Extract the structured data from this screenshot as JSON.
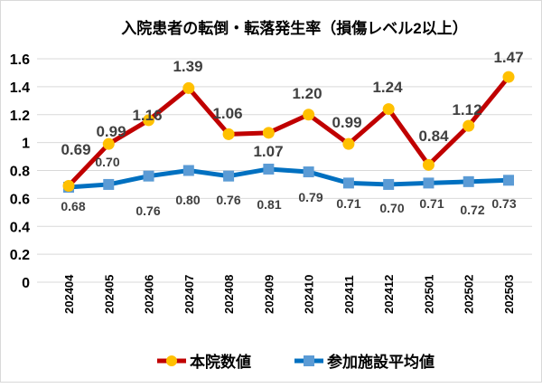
{
  "chart_data": {
    "type": "line",
    "title": "入院患者の転倒・転落発生率（損傷レベル2以上）",
    "xlabel": "",
    "ylabel": "",
    "categories": [
      "202404",
      "202405",
      "202406",
      "202407",
      "202408",
      "202409",
      "202410",
      "202411",
      "202412",
      "202501",
      "202502",
      "202503"
    ],
    "ylim": [
      0,
      1.6
    ],
    "yticks": [
      "0",
      "0.2",
      "0.4",
      "0.6",
      "0.8",
      "1",
      "1.2",
      "1.4",
      "1.6"
    ],
    "grid": true,
    "legend_placement": "bottom",
    "series": [
      {
        "name": "本院数値",
        "values": [
          0.69,
          0.99,
          1.16,
          1.39,
          1.06,
          1.07,
          1.2,
          0.99,
          1.24,
          0.84,
          1.12,
          1.47
        ],
        "labels": [
          "0.69",
          "0.99",
          "1.16",
          "1.39",
          "1.06",
          "1.07",
          "1.20",
          "0.99",
          "1.24",
          "0.84",
          "1.12",
          "1.47"
        ],
        "line_color": "#c00000",
        "marker": "circle",
        "marker_color": "#ffc000"
      },
      {
        "name": "参加施設平均値",
        "values": [
          0.68,
          0.7,
          0.76,
          0.8,
          0.76,
          0.81,
          0.79,
          0.71,
          0.7,
          0.71,
          0.72,
          0.73
        ],
        "labels": [
          "0.68",
          "0.70",
          "0.76",
          "0.80",
          "0.76",
          "0.81",
          "0.79",
          "0.71",
          "0.70",
          "0.71",
          "0.72",
          "0.73"
        ],
        "line_color": "#0070c0",
        "marker": "square",
        "marker_color": "#5b9bd5"
      }
    ]
  }
}
